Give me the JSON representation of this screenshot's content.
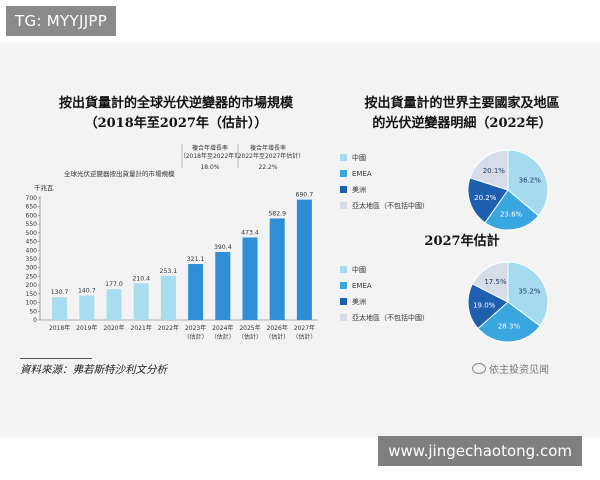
{
  "watermark_top": "TG: MYYJJPP",
  "watermark_bottom": "www.jingechaotong.com",
  "left_title": [
    "按出貨量計的全球光伏逆變器的市場規模",
    "（2018年至2027年（估計））"
  ],
  "right_title": [
    "按出貨量計的世界主要國家及地區",
    "的光伏逆變器明細（2022年）"
  ],
  "pie2_title": "2027年估計",
  "source_text": "資料來源：弗若斯特沙利文分析",
  "weibo_text": "依主投资见闻",
  "colors": {
    "bar_light": "#a8dcf0",
    "bar_dark": "#2f8ed6",
    "china": "#a6dbef",
    "emea": "#3aa6e0",
    "us": "#1f5fb0",
    "apac": "#d7dde8"
  },
  "chart_data": [
    {
      "type": "bar",
      "categories": [
        "2018年",
        "2019年",
        "2020年",
        "2021年",
        "2022年",
        "2023年",
        "2024年",
        "2025年",
        "2026年",
        "2027年"
      ],
      "category_sublabels": [
        "",
        "",
        "",
        "",
        "",
        "（估計）",
        "（估計）",
        "（估計）",
        "（估計）",
        "（估計）"
      ],
      "values": [
        130.7,
        140.7,
        177.0,
        210.4,
        253.1,
        321.1,
        390.4,
        473.4,
        582.9,
        690.7
      ],
      "value_labels": [
        "130.7",
        "140.7",
        "177.0",
        "210.4",
        "253.1",
        "321.1",
        "390.4",
        "473.4",
        "582.9",
        "690.7"
      ],
      "ylabel": "千兆瓦",
      "yticks": [
        0,
        50,
        100,
        150,
        200,
        250,
        300,
        350,
        400,
        450,
        500,
        550,
        600,
        650,
        700
      ],
      "ylim": [
        0,
        700
      ],
      "legend_label": "全球光伏逆變器按出貨量計的市場規模",
      "cagr": [
        {
          "header": "複合年增長率",
          "period": "（2018年至2022年）",
          "value": "18.0%"
        },
        {
          "header": "複合年增長率",
          "period": "（2022年至2027年估計）",
          "value": "22.2%"
        }
      ]
    },
    {
      "type": "pie",
      "title": "",
      "labels": [
        "中國",
        "EMEA",
        "美洲",
        "亞太地區（不包括中國）"
      ],
      "values": [
        36.2,
        23.6,
        20.2,
        20.1
      ],
      "value_labels": [
        "36.2%",
        "23.6%",
        "20.2%",
        "20.1%"
      ]
    },
    {
      "type": "pie",
      "title": "2027年估計",
      "labels": [
        "中國",
        "EMEA",
        "美洲",
        "亞太地區（不包括中國）"
      ],
      "values": [
        35.2,
        28.3,
        19.0,
        17.5
      ],
      "value_labels": [
        "35.2%",
        "28.3%",
        "19.0%",
        "17.5%"
      ]
    }
  ]
}
